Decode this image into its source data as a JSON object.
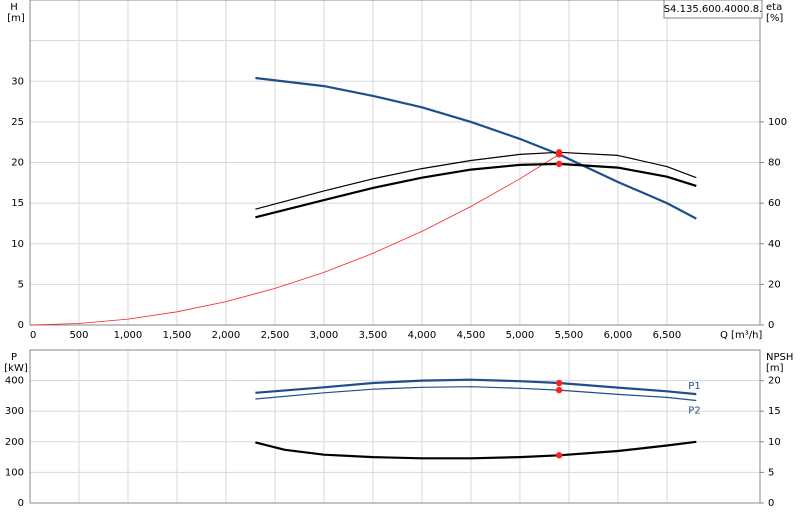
{
  "chart_data": [
    {
      "type": "line",
      "title": "S4.135.600.4000.8.",
      "ylabel": "H",
      "yunit": "[m]",
      "y2label": "eta",
      "y2unit": "[%]",
      "xlabel": "Q [m³/h]",
      "xlim": [
        0,
        7450
      ],
      "xticks": [
        0,
        500,
        {
          "value": 1000,
          "label": "1,000"
        },
        {
          "value": 1500,
          "label": "1,500"
        },
        {
          "value": 2000,
          "label": "2,000"
        },
        {
          "value": 2500,
          "label": "2,500"
        },
        {
          "value": 3000,
          "label": "3,000"
        },
        {
          "value": 3500,
          "label": "3,500"
        },
        {
          "value": 4000,
          "label": "4,000"
        },
        {
          "value": 4500,
          "label": "4,500"
        },
        {
          "value": 5000,
          "label": "5,000"
        },
        {
          "value": 5500,
          "label": "5,500"
        },
        {
          "value": 6000,
          "label": "6,000"
        },
        {
          "value": 6500,
          "label": "6,500"
        }
      ],
      "ylim": [
        0,
        40
      ],
      "yticks": [
        0,
        5,
        10,
        15,
        20,
        25,
        30
      ],
      "y2lim": [
        0,
        160
      ],
      "y2ticks": [
        0,
        20,
        40,
        60,
        80,
        100
      ],
      "grid": true,
      "series": [
        {
          "color": "#ff2020",
          "style": "hair",
          "x": [
            0,
            500,
            1000,
            1500,
            2000,
            2500,
            3000,
            3500,
            4000,
            4500,
            5000,
            5400
          ],
          "values": [
            0,
            0.18,
            0.72,
            1.62,
            2.88,
            4.5,
            6.48,
            8.82,
            11.52,
            14.58,
            18,
            21
          ]
        },
        {
          "color": "#1f4e8c",
          "style": "thick",
          "marker_at": 5400,
          "x": [
            2300,
            3000,
            3500,
            4000,
            4500,
            5000,
            5400,
            6000,
            6500,
            6800
          ],
          "values": [
            30.4,
            29.4,
            28.2,
            26.8,
            25,
            22.9,
            21,
            17.6,
            15,
            13.1
          ]
        },
        {
          "color": "#000000",
          "style": "thin",
          "axis": "y2",
          "marker_at": 5400,
          "x": [
            2300,
            3000,
            3500,
            4000,
            4500,
            5000,
            5400,
            6000,
            6500,
            6800
          ],
          "values": [
            57,
            66,
            72,
            77,
            81,
            84,
            85,
            83.5,
            78,
            72.5
          ]
        },
        {
          "color": "#000000",
          "style": "thick",
          "axis": "y2",
          "marker_at": 5400,
          "x": [
            2300,
            3000,
            3500,
            4000,
            4500,
            5000,
            5400,
            6000,
            6500,
            6800
          ],
          "values": [
            53,
            61.5,
            67.5,
            72.5,
            76.5,
            78.8,
            79.3,
            77.5,
            73,
            68.5
          ]
        }
      ]
    },
    {
      "type": "line",
      "ylabel": "P",
      "yunit": "[kW]",
      "y2label": "NPSH",
      "y2unit": "[m]",
      "xlim": [
        0,
        7450
      ],
      "xgrid": [
        0,
        500,
        1000,
        1500,
        2000,
        2500,
        3000,
        3500,
        4000,
        4500,
        5000,
        5500,
        6000,
        6500
      ],
      "ylim": [
        0,
        500
      ],
      "yticks": [
        0,
        100,
        200,
        300,
        400
      ],
      "y2lim": [
        0,
        25
      ],
      "y2ticks": [
        0,
        5,
        10,
        15,
        20
      ],
      "grid": true,
      "series": [
        {
          "name": "P1",
          "color": "#1f4e8c",
          "style": "thick",
          "marker_at": 5400,
          "x": [
            2300,
            3000,
            3500,
            4000,
            4500,
            5000,
            5400,
            6000,
            6500,
            6800
          ],
          "values": [
            360,
            378,
            392,
            400,
            403,
            398,
            392,
            377,
            365,
            356
          ]
        },
        {
          "name": "P2",
          "color": "#1f4e8c",
          "style": "thin",
          "marker_at": 5400,
          "x": [
            2300,
            3000,
            3500,
            4000,
            4500,
            5000,
            5400,
            6000,
            6500,
            6800
          ],
          "values": [
            340,
            360,
            372,
            378,
            380,
            375,
            369,
            355,
            345,
            335
          ]
        },
        {
          "color": "#000000",
          "style": "thick",
          "axis": "y2",
          "marker_at": 5400,
          "x": [
            2300,
            2600,
            3000,
            3500,
            4000,
            4500,
            5000,
            5400,
            6000,
            6500,
            6800
          ],
          "values": [
            9.9,
            8.7,
            7.9,
            7.5,
            7.3,
            7.3,
            7.5,
            7.8,
            8.5,
            9.4,
            10
          ]
        }
      ]
    }
  ]
}
